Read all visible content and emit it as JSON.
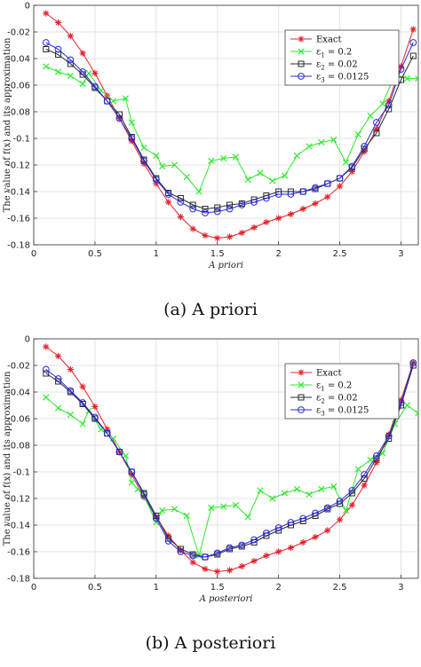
{
  "chart_data": [
    {
      "type": "line",
      "caption": "(a) A priori",
      "xlabel": "A priori",
      "ylabel": "The value of f(x) and its approximation",
      "xlim": [
        0,
        3.1416
      ],
      "ylim": [
        -0.18,
        0
      ],
      "xticks": [
        0,
        0.5,
        1,
        1.5,
        2,
        2.5,
        3
      ],
      "xtick_labels": [
        "0",
        "0.5",
        "1",
        "1.5",
        "2",
        "2.5",
        "3"
      ],
      "yticks": [
        0,
        -0.02,
        -0.04,
        -0.06,
        -0.08,
        -0.1,
        -0.12,
        -0.14,
        -0.16,
        -0.18
      ],
      "ytick_labels": [
        "0",
        "-0.02",
        "-0.04",
        "-0.06",
        "-0.08",
        "-0.1",
        "-0.12",
        "-0.14",
        "-0.16",
        "-0.18"
      ],
      "grid": true,
      "legend_position": "top-right",
      "series": [
        {
          "name": "Exact",
          "color": "#e8202a",
          "marker": "star",
          "x": [
            0.1,
            0.2,
            0.3,
            0.4,
            0.5,
            0.6,
            0.7,
            0.8,
            0.9,
            1.0,
            1.1,
            1.2,
            1.3,
            1.4,
            1.5,
            1.6,
            1.7,
            1.8,
            1.9,
            2.0,
            2.1,
            2.2,
            2.3,
            2.4,
            2.5,
            2.6,
            2.7,
            2.8,
            2.9,
            3.0,
            3.1
          ],
          "y": [
            -0.006,
            -0.013,
            -0.023,
            -0.036,
            -0.051,
            -0.068,
            -0.085,
            -0.102,
            -0.119,
            -0.134,
            -0.148,
            -0.159,
            -0.168,
            -0.173,
            -0.175,
            -0.174,
            -0.171,
            -0.167,
            -0.163,
            -0.16,
            -0.157,
            -0.153,
            -0.149,
            -0.144,
            -0.136,
            -0.125,
            -0.11,
            -0.093,
            -0.072,
            -0.046,
            -0.018
          ]
        },
        {
          "name": "ε1 = 0.2",
          "color": "#2ee82e",
          "marker": "x",
          "x": [
            0.1,
            0.2,
            0.3,
            0.4,
            0.45,
            0.55,
            0.65,
            0.75,
            0.8,
            0.9,
            1.0,
            1.05,
            1.15,
            1.25,
            1.35,
            1.45,
            1.55,
            1.65,
            1.75,
            1.85,
            1.95,
            2.05,
            2.15,
            2.25,
            2.35,
            2.45,
            2.55,
            2.65,
            2.75,
            2.85,
            2.95,
            3.05,
            3.14
          ],
          "y": [
            -0.046,
            -0.05,
            -0.053,
            -0.059,
            -0.051,
            -0.064,
            -0.072,
            -0.07,
            -0.088,
            -0.107,
            -0.113,
            -0.121,
            -0.12,
            -0.129,
            -0.14,
            -0.117,
            -0.115,
            -0.114,
            -0.131,
            -0.126,
            -0.132,
            -0.128,
            -0.113,
            -0.106,
            -0.103,
            -0.101,
            -0.118,
            -0.097,
            -0.083,
            -0.074,
            -0.052,
            -0.055,
            -0.055
          ]
        },
        {
          "name": "ε2 = 0.02",
          "color": "#2a2a2a",
          "marker": "square",
          "x": [
            0.1,
            0.2,
            0.3,
            0.4,
            0.5,
            0.6,
            0.7,
            0.8,
            0.9,
            1.0,
            1.1,
            1.2,
            1.3,
            1.4,
            1.5,
            1.6,
            1.7,
            1.8,
            1.9,
            2.0,
            2.1,
            2.2,
            2.3,
            2.4,
            2.5,
            2.6,
            2.7,
            2.8,
            2.9,
            3.0,
            3.1
          ],
          "y": [
            -0.033,
            -0.037,
            -0.044,
            -0.052,
            -0.062,
            -0.072,
            -0.082,
            -0.099,
            -0.116,
            -0.13,
            -0.141,
            -0.145,
            -0.15,
            -0.153,
            -0.152,
            -0.15,
            -0.149,
            -0.146,
            -0.143,
            -0.14,
            -0.14,
            -0.14,
            -0.138,
            -0.134,
            -0.13,
            -0.122,
            -0.108,
            -0.096,
            -0.078,
            -0.056,
            -0.038
          ]
        },
        {
          "name": "ε3 = 0.0125",
          "color": "#2a2ae0",
          "marker": "circle",
          "x": [
            0.1,
            0.2,
            0.3,
            0.4,
            0.5,
            0.6,
            0.7,
            0.8,
            0.9,
            1.0,
            1.1,
            1.2,
            1.3,
            1.4,
            1.5,
            1.6,
            1.7,
            1.8,
            1.9,
            2.0,
            2.1,
            2.2,
            2.3,
            2.4,
            2.5,
            2.6,
            2.7,
            2.8,
            2.9,
            3.0,
            3.1
          ],
          "y": [
            -0.028,
            -0.033,
            -0.041,
            -0.05,
            -0.061,
            -0.072,
            -0.085,
            -0.1,
            -0.117,
            -0.131,
            -0.142,
            -0.148,
            -0.153,
            -0.156,
            -0.155,
            -0.153,
            -0.15,
            -0.148,
            -0.145,
            -0.142,
            -0.142,
            -0.14,
            -0.137,
            -0.134,
            -0.13,
            -0.121,
            -0.106,
            -0.088,
            -0.075,
            -0.048,
            -0.028
          ]
        }
      ]
    },
    {
      "type": "line",
      "caption": "(b) A posteriori",
      "xlabel": "A posteriori",
      "ylabel": "The value of f(x) and its approximation",
      "xlim": [
        0,
        3.1416
      ],
      "ylim": [
        -0.18,
        0
      ],
      "xticks": [
        0,
        0.5,
        1,
        1.5,
        2,
        2.5,
        3
      ],
      "xtick_labels": [
        "0",
        "0.5",
        "1",
        "1.5",
        "2",
        "2.5",
        "3"
      ],
      "yticks": [
        0,
        -0.02,
        -0.04,
        -0.06,
        -0.08,
        -0.1,
        -0.12,
        -0.14,
        -0.16,
        -0.18
      ],
      "ytick_labels": [
        "0",
        "-0.02",
        "-0.04",
        "-0.06",
        "-0.08",
        "-0.1",
        "-0.12",
        "-0.14",
        "-0.16",
        "-0.18"
      ],
      "grid": true,
      "legend_position": "top-right",
      "series": [
        {
          "name": "Exact",
          "color": "#e8202a",
          "marker": "star",
          "x": [
            0.1,
            0.2,
            0.3,
            0.4,
            0.5,
            0.6,
            0.7,
            0.8,
            0.9,
            1.0,
            1.1,
            1.2,
            1.3,
            1.4,
            1.5,
            1.6,
            1.7,
            1.8,
            1.9,
            2.0,
            2.1,
            2.2,
            2.3,
            2.4,
            2.5,
            2.6,
            2.7,
            2.8,
            2.9,
            3.0,
            3.1
          ],
          "y": [
            -0.006,
            -0.013,
            -0.023,
            -0.036,
            -0.051,
            -0.068,
            -0.085,
            -0.102,
            -0.119,
            -0.134,
            -0.148,
            -0.159,
            -0.168,
            -0.173,
            -0.175,
            -0.174,
            -0.171,
            -0.167,
            -0.163,
            -0.16,
            -0.157,
            -0.153,
            -0.149,
            -0.144,
            -0.136,
            -0.125,
            -0.11,
            -0.093,
            -0.072,
            -0.046,
            -0.018
          ]
        },
        {
          "name": "ε1 = 0.2",
          "color": "#2ee82e",
          "marker": "x",
          "x": [
            0.1,
            0.2,
            0.3,
            0.4,
            0.45,
            0.55,
            0.65,
            0.75,
            0.8,
            0.85,
            0.9,
            1.0,
            1.05,
            1.15,
            1.25,
            1.35,
            1.45,
            1.55,
            1.65,
            1.75,
            1.85,
            1.95,
            2.05,
            2.15,
            2.25,
            2.35,
            2.45,
            2.55,
            2.65,
            2.75,
            2.85,
            2.95,
            3.05,
            3.14
          ],
          "y": [
            -0.044,
            -0.052,
            -0.057,
            -0.064,
            -0.054,
            -0.068,
            -0.075,
            -0.088,
            -0.108,
            -0.113,
            -0.118,
            -0.138,
            -0.129,
            -0.128,
            -0.133,
            -0.163,
            -0.127,
            -0.126,
            -0.125,
            -0.134,
            -0.114,
            -0.12,
            -0.116,
            -0.113,
            -0.117,
            -0.113,
            -0.111,
            -0.129,
            -0.098,
            -0.091,
            -0.086,
            -0.064,
            -0.05,
            -0.056
          ]
        },
        {
          "name": "ε2 = 0.02",
          "color": "#2a2a2a",
          "marker": "square",
          "x": [
            0.1,
            0.2,
            0.3,
            0.4,
            0.5,
            0.6,
            0.7,
            0.8,
            0.9,
            1.0,
            1.1,
            1.2,
            1.3,
            1.4,
            1.5,
            1.6,
            1.7,
            1.8,
            1.9,
            2.0,
            2.1,
            2.2,
            2.3,
            2.4,
            2.5,
            2.6,
            2.7,
            2.8,
            2.9,
            3.0,
            3.1
          ],
          "y": [
            -0.026,
            -0.032,
            -0.04,
            -0.049,
            -0.06,
            -0.071,
            -0.085,
            -0.1,
            -0.116,
            -0.133,
            -0.15,
            -0.158,
            -0.162,
            -0.164,
            -0.162,
            -0.158,
            -0.156,
            -0.153,
            -0.148,
            -0.144,
            -0.14,
            -0.137,
            -0.133,
            -0.128,
            -0.124,
            -0.116,
            -0.105,
            -0.09,
            -0.075,
            -0.05,
            -0.02
          ]
        },
        {
          "name": "ε3 = 0.0125",
          "color": "#2a2ae0",
          "marker": "circle",
          "x": [
            0.1,
            0.2,
            0.3,
            0.4,
            0.5,
            0.6,
            0.7,
            0.8,
            0.9,
            1.0,
            1.1,
            1.2,
            1.3,
            1.4,
            1.5,
            1.6,
            1.7,
            1.8,
            1.9,
            2.0,
            2.1,
            2.2,
            2.3,
            2.4,
            2.5,
            2.6,
            2.7,
            2.8,
            2.9,
            3.0,
            3.1
          ],
          "y": [
            -0.023,
            -0.03,
            -0.039,
            -0.048,
            -0.059,
            -0.071,
            -0.085,
            -0.1,
            -0.117,
            -0.135,
            -0.152,
            -0.16,
            -0.163,
            -0.164,
            -0.161,
            -0.157,
            -0.155,
            -0.151,
            -0.146,
            -0.142,
            -0.138,
            -0.135,
            -0.131,
            -0.127,
            -0.122,
            -0.114,
            -0.102,
            -0.088,
            -0.073,
            -0.048,
            -0.018
          ]
        }
      ]
    }
  ]
}
